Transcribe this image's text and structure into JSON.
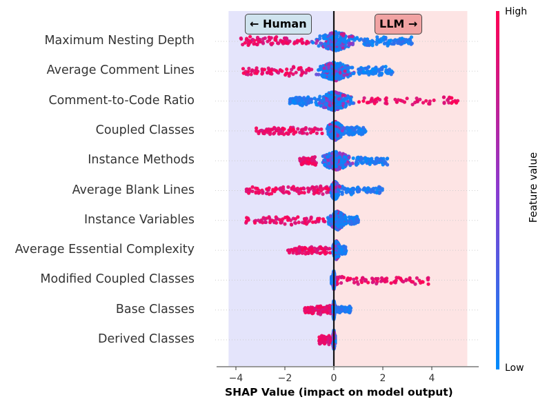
{
  "chart_data": {
    "type": "beeswarm",
    "title": "",
    "xlabel": "SHAP Value (impact on model output)",
    "xlim": [
      -4.5,
      5.5
    ],
    "xticks": [
      -4,
      -2,
      0,
      2,
      4
    ],
    "xtick_labels": [
      "−4",
      "−2",
      "0",
      "2",
      "4"
    ],
    "region_labels": {
      "left": "← Human",
      "right": "LLM →"
    },
    "regions": {
      "left": [
        -4.3,
        0
      ],
      "right": [
        0,
        5.45
      ]
    },
    "colorbar": {
      "label": "Feature value",
      "high": "High",
      "low": "Low"
    },
    "features": [
      {
        "name": "Maximum Nesting Depth",
        "min": -3.8,
        "max": 3.2,
        "bulk": [
          -1.0,
          1.2
        ]
      },
      {
        "name": "Average Comment Lines",
        "min": -3.9,
        "max": 2.4,
        "bulk": [
          -0.9,
          1.0
        ]
      },
      {
        "name": "Comment-to-Code Ratio",
        "min": -1.8,
        "max": 5.1,
        "bulk": [
          -0.9,
          0.9
        ]
      },
      {
        "name": "Coupled Classes",
        "min": -3.2,
        "max": 1.3,
        "bulk": [
          -0.4,
          0.5
        ]
      },
      {
        "name": "Instance Methods",
        "min": -1.4,
        "max": 2.2,
        "bulk": [
          -0.7,
          0.9
        ]
      },
      {
        "name": "Average Blank Lines",
        "min": -3.6,
        "max": 2.0,
        "bulk": [
          -0.2,
          0.3
        ]
      },
      {
        "name": "Instance Variables",
        "min": -3.6,
        "max": 1.0,
        "bulk": [
          -0.3,
          0.6
        ]
      },
      {
        "name": "Average Essential Complexity",
        "min": -1.9,
        "max": 0.5,
        "bulk": [
          -0.1,
          0.3
        ]
      },
      {
        "name": "Modified Coupled Classes",
        "min": -0.1,
        "max": 3.9,
        "bulk": [
          -0.05,
          0.05
        ]
      },
      {
        "name": "Base Classes",
        "min": -1.2,
        "max": 0.7,
        "bulk": [
          -0.05,
          0.05
        ]
      },
      {
        "name": "Derived Classes",
        "min": -0.6,
        "max": 0.05,
        "bulk": [
          -0.05,
          0.05
        ]
      }
    ]
  },
  "colors": {
    "high": "#ff0052",
    "low": "#008bfb",
    "mid": "#8a3bd0",
    "human_bg": "#e4e4fb",
    "llm_bg": "#fde4e4"
  }
}
